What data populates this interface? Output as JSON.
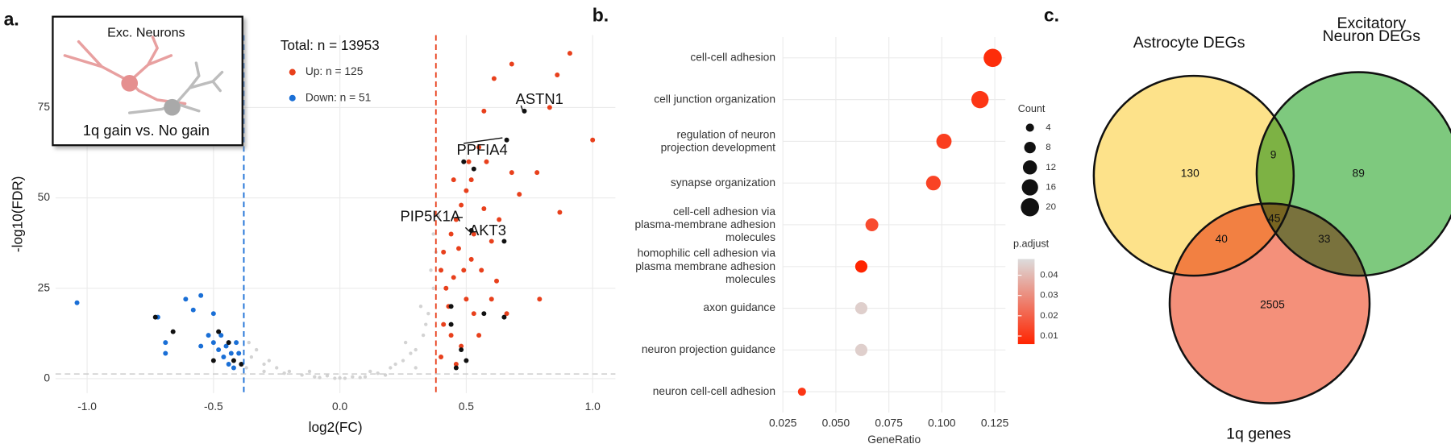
{
  "chart_data": [
    {
      "type": "scatter",
      "panel": "a.",
      "inset_title": "Exc. Neurons",
      "inset_subtitle": "1q gain vs. No gain",
      "x_label": "log2(FC)",
      "y_label": "-log10(FDR)",
      "legend_title": "Total: n = 13953",
      "xlim": [
        -1.125,
        1.09
      ],
      "ylim": [
        -4,
        95
      ],
      "xticks": [
        {
          "value": -1.0,
          "label": "-1.0"
        },
        -0.5,
        {
          "value": 0,
          "label": "0.0"
        },
        0.5,
        {
          "value": 1.0,
          "label": "1.0"
        }
      ],
      "yticks": [
        0,
        25,
        50,
        75
      ],
      "grid": true,
      "vlines": [
        {
          "value": -0.38,
          "color": "#1a6fd6"
        },
        {
          "value": 0.38,
          "color": "#e8401c"
        }
      ],
      "hline": 1.3,
      "annotations": [
        "ASTN1",
        "PPFIA4",
        "PIP5K1A",
        "AKT3"
      ],
      "series": [
        {
          "color": "#d3d3d3",
          "x": [
            -0.35,
            -0.3,
            -0.25,
            -0.2,
            -0.15,
            -0.1,
            0,
            0.1,
            0.15,
            0.2,
            0.25,
            0.3,
            0.33,
            0.35,
            0.37,
            0.36,
            0.34,
            0.28,
            0.22,
            0.05,
            -0.05,
            -0.28,
            -0.33,
            -0.36,
            0.38,
            0.39,
            -0.37,
            0.12,
            -0.12,
            0.18,
            -0.22,
            0.3,
            -0.3,
            0.26,
            0.32,
            0.37,
            -0.08,
            0.08,
            0.02,
            -0.02
          ],
          "y": [
            6,
            4,
            3,
            2,
            1,
            0.5,
            0.2,
            0.5,
            1.5,
            3,
            5,
            8,
            12,
            18,
            25,
            30,
            15,
            7,
            4,
            0.5,
            0.8,
            5,
            8,
            10,
            35,
            45,
            3,
            2,
            2,
            1,
            1.5,
            3,
            2,
            10,
            20,
            40,
            0.3,
            0.3,
            0.1,
            0.1
          ]
        },
        {
          "name": "Up: n = 125",
          "color": "#e8401c",
          "x": [
            0.91,
            0.68,
            0.86,
            0.61,
            0.83,
            0.57,
            1.0,
            0.87,
            0.78,
            0.71,
            0.68,
            0.58,
            0.55,
            0.52,
            0.5,
            0.48,
            0.46,
            0.44,
            0.47,
            0.52,
            0.56,
            0.45,
            0.42,
            0.5,
            0.53,
            0.41,
            0.44,
            0.48,
            0.4,
            0.46,
            0.6,
            0.63,
            0.79,
            0.6,
            0.66,
            0.55,
            0.43,
            0.49,
            0.41,
            0.62,
            0.53,
            0.45,
            0.51,
            0.57,
            0.4
          ],
          "y": [
            90,
            87,
            84,
            83,
            75,
            74,
            66,
            46,
            57,
            51,
            57,
            60,
            64,
            55,
            52,
            48,
            44,
            40,
            36,
            33,
            30,
            28,
            25,
            22,
            18,
            15,
            12,
            9,
            6,
            4,
            38,
            44,
            22,
            22,
            18,
            12,
            20,
            30,
            35,
            27,
            40,
            55,
            60,
            47,
            30
          ]
        },
        {
          "name": "Down: n = 51",
          "color": "#1a6fd6",
          "x": [
            -1.04,
            -0.72,
            -0.61,
            -0.55,
            -0.58,
            -0.5,
            -0.69,
            -0.69,
            -0.55,
            -0.47,
            -0.45,
            -0.43,
            -0.41,
            -0.46,
            -0.48,
            -0.4,
            -0.52,
            -0.42,
            -0.5,
            -0.44
          ],
          "y": [
            21,
            17,
            22,
            23,
            19,
            18,
            10,
            7,
            9,
            12,
            9,
            7,
            10,
            6,
            8,
            7,
            12,
            3,
            10,
            4
          ]
        },
        {
          "color": "#111111",
          "x": [
            0.73,
            0.66,
            0.52,
            0.65,
            0.53,
            0.49,
            0.44,
            0.57,
            0.48,
            0.44,
            0.65,
            0.46,
            0.5,
            -0.73,
            -0.48,
            -0.44,
            -0.66,
            -0.5,
            -0.42,
            -0.39
          ],
          "y": [
            74,
            66,
            41,
            38,
            58,
            60,
            20,
            18,
            8,
            15,
            17,
            3,
            5,
            17,
            13,
            10,
            13,
            5,
            5,
            4
          ]
        }
      ]
    },
    {
      "type": "dot",
      "panel": "b.",
      "x_label": "GeneRatio",
      "size_title": "Count",
      "color_title": "p.adjust",
      "categories": [
        "cell-cell adhesion",
        "cell junction organization",
        "regulation of neuron\nprojection development",
        "synapse organization",
        "cell-cell adhesion via\nplasma-membrane adhesion\nmolecules",
        "homophilic cell adhesion via\nplasma membrane adhesion\nmolecules",
        "axon guidance",
        "neuron projection guidance",
        "neuron cell-cell adhesion"
      ],
      "x": [
        0.124,
        0.118,
        0.101,
        0.096,
        0.067,
        0.062,
        0.062,
        0.062,
        0.034
      ],
      "count": [
        20,
        18,
        14,
        13,
        10,
        9,
        9,
        9,
        4
      ],
      "p_adjust": [
        0.008,
        0.01,
        0.012,
        0.013,
        0.015,
        0.006,
        0.045,
        0.045,
        0.01
      ],
      "xlim": [
        0.025,
        0.13
      ],
      "xticks": [
        0.025,
        {
          "value": 0.05,
          "label": "0.050"
        },
        0.075,
        {
          "value": 0.1,
          "label": "0.100"
        },
        0.125
      ],
      "size_ticks": [
        4,
        8,
        12,
        16,
        20
      ],
      "clim": [
        0.006,
        0.048
      ],
      "cticks": [
        0.01,
        0.02,
        0.03,
        0.04
      ],
      "colors": [
        "#ff2400",
        "#dcdcdc"
      ],
      "grid": true
    },
    {
      "type": "venn",
      "panel": "c.",
      "sets": [
        {
          "name": "Astrocyte DEGs",
          "color": "#fde28a"
        },
        {
          "name": "Excitatory\nNeuron DEGs",
          "color": "#7ec97e"
        },
        {
          "name": "1q genes",
          "color": "#f4907a"
        }
      ],
      "counts": {
        "A": 130,
        "B": 89,
        "C": 2505,
        "AB": 9,
        "AC": 40,
        "BC": 33,
        "ABC": 45
      }
    }
  ]
}
